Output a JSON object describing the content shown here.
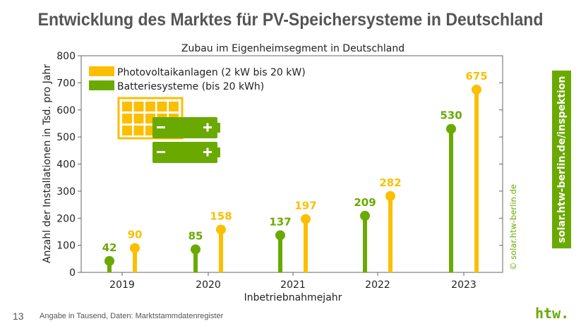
{
  "title": "Entwicklung des Marktes für PV-Speichersysteme in Deutschland",
  "side_label": "solar.htw-berlin.de/inspektion",
  "copyright": "© solar.htw-berlin.de",
  "footer": {
    "page": "13",
    "note": "Angabe in Tausend, Daten: Marktstammdatenregister",
    "logo": "htw."
  },
  "colors": {
    "pv": "#fbbf00",
    "battery": "#6aaa00"
  },
  "chart_data": {
    "type": "lollipop",
    "title": "Zubau im Eigenheimsegment in Deutschland",
    "xlabel": "Inbetriebnahmejahr",
    "ylabel": "Anzahl der Installationen in Tsd. pro Jahr",
    "ylim": [
      0,
      800
    ],
    "yticks": [
      "0",
      "100",
      "200",
      "300",
      "400",
      "500",
      "600",
      "700",
      "800"
    ],
    "categories": [
      "2019",
      "2020",
      "2021",
      "2022",
      "2023"
    ],
    "legend": "top-left",
    "series": [
      {
        "name": "Batteriesysteme (bis 20 kWh)",
        "color": "#6aaa00",
        "values": [
          42,
          85,
          137,
          209,
          530
        ]
      },
      {
        "name": "Photovoltaikanlagen (2 kW bis 20 kW)",
        "color": "#fbbf00",
        "values": [
          90,
          158,
          197,
          282,
          675
        ]
      }
    ]
  }
}
